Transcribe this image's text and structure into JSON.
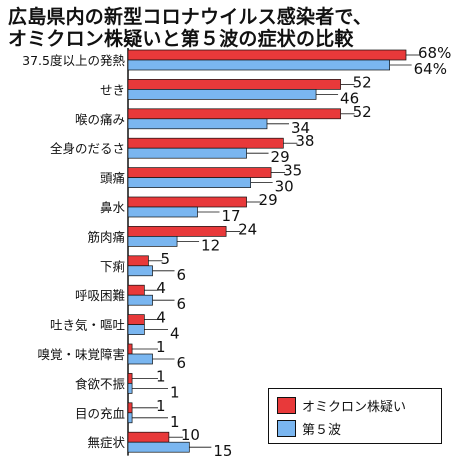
{
  "colors": {
    "omicron": "#e8393a",
    "wave5": "#7ab6f0"
  },
  "chart_data": {
    "type": "bar",
    "orientation": "horizontal",
    "title_lines": [
      "広島県内の新型コロナウイルス感染者で、",
      "オミクロン株疑いと第５波の症状の比較"
    ],
    "categories": [
      "37.5度以上の発熱",
      "せき",
      "喉の痛み",
      "全身のだるさ",
      "頭痛",
      "鼻水",
      "筋肉痛",
      "下痢",
      "呼吸困難",
      "吐き気・嘔吐",
      "嗅覚・味覚障害",
      "食欲不振",
      "目の充血",
      "無症状"
    ],
    "series": [
      {
        "name": "オミクロン株疑い",
        "values": [
          68,
          52,
          52,
          38,
          35,
          29,
          24,
          5,
          4,
          4,
          1,
          1,
          1,
          10
        ]
      },
      {
        "name": "第５波",
        "values": [
          64,
          46,
          34,
          29,
          30,
          17,
          12,
          6,
          6,
          4,
          6,
          1,
          1,
          15
        ]
      }
    ],
    "value_labels_omicron": [
      "68%",
      "52",
      "52",
      "38",
      "35",
      "29",
      "24",
      "5",
      "4",
      "4",
      "1",
      "1",
      "1",
      "10"
    ],
    "value_labels_wave5": [
      "64%",
      "46",
      "34",
      "29",
      "30",
      "17",
      "12",
      "6",
      "6",
      "4",
      "6",
      "1",
      "1",
      "15"
    ],
    "xlim": [
      0,
      68
    ],
    "legend_position": "bottom-right",
    "grid": false
  }
}
